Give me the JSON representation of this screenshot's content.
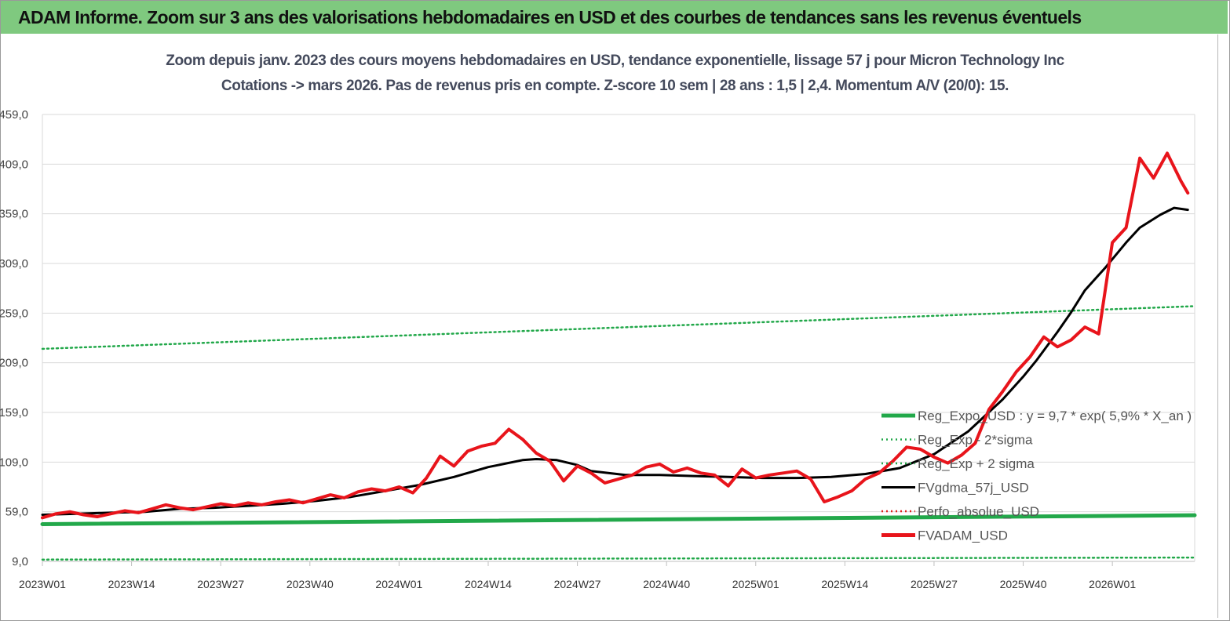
{
  "banner_title": "ADAM Informe. Zoom sur 3 ans des valorisations hebdomadaires en USD et des courbes de tendances sans les revenus éventuels",
  "chart_data": {
    "type": "line",
    "title_line1": "Zoom depuis janv. 2023 des cours moyens hebdomadaires en USD, tendance exponentielle, lissage 57 j pour Micron Technology Inc",
    "title_line2": "Cotations -> mars 2026. Pas de revenus pris en compte. Z-score 10 sem  | 28 ans : 1,5 | 2,4. Momentum A/V (20/0): 15.",
    "ylim": [
      9,
      459
    ],
    "yticks": [
      "9,0",
      "59,0",
      "109,0",
      "159,0",
      "209,0",
      "259,0",
      "309,0",
      "359,0",
      "409,0",
      "459,0"
    ],
    "ytick_values": [
      9,
      59,
      109,
      159,
      209,
      259,
      309,
      359,
      409,
      459
    ],
    "xticks": [
      "2023W01",
      "2023W14",
      "2023W27",
      "2023W40",
      "2024W01",
      "2024W14",
      "2024W27",
      "2024W40",
      "2025W01",
      "2025W14",
      "2025W27",
      "2025W40",
      "2026W01"
    ],
    "x_range_weeks": [
      0,
      168
    ],
    "grid": true,
    "legend_position": "bottom-right inside plot",
    "series": [
      {
        "name": "Reg_Expo_USD : y = 9,7 * exp( 5,9% *  X_an )",
        "color": "#22a84a",
        "style": "thick",
        "x": [
          0,
          168
        ],
        "values": [
          46.5,
          55.5
        ]
      },
      {
        "name": "Reg_Exp - 2*sigma",
        "color": "#22a84a",
        "style": "dotted",
        "x": [
          0,
          168
        ],
        "values": [
          10.8,
          12.9
        ]
      },
      {
        "name": "Reg_Exp + 2 sigma",
        "color": "#22a84a",
        "style": "dotted",
        "x": [
          0,
          168
        ],
        "values": [
          223,
          266
        ]
      },
      {
        "name": "FVgdma_57j_USD",
        "color": "#000000",
        "style": "solid",
        "x": [
          0,
          5,
          10,
          15,
          20,
          25,
          30,
          35,
          40,
          45,
          50,
          55,
          60,
          65,
          70,
          72,
          75,
          78,
          80,
          85,
          90,
          95,
          100,
          105,
          110,
          115,
          120,
          125,
          130,
          135,
          140,
          143,
          145,
          148,
          150,
          152,
          155,
          158,
          160,
          163,
          165,
          167
        ],
        "values": [
          56,
          57,
          58,
          59,
          62,
          63,
          65,
          67,
          70,
          74,
          80,
          86,
          94,
          104,
          111,
          112,
          111,
          106,
          100,
          96,
          96,
          95,
          94,
          93,
          93,
          94,
          97,
          103,
          117,
          140,
          172,
          195,
          212,
          240,
          260,
          282,
          305,
          330,
          345,
          358,
          365,
          363
        ]
      },
      {
        "name": "Perfo_absolue_USD",
        "color": "#e0201c",
        "style": "dotted",
        "x": [],
        "values": []
      },
      {
        "name": "FVADAM_USD",
        "color": "#e8141b",
        "style": "thick",
        "x": [
          0,
          2,
          4,
          6,
          8,
          10,
          12,
          14,
          16,
          18,
          20,
          22,
          24,
          26,
          28,
          30,
          32,
          34,
          36,
          38,
          40,
          42,
          44,
          46,
          48,
          50,
          52,
          54,
          56,
          58,
          60,
          62,
          64,
          66,
          68,
          70,
          72,
          74,
          76,
          78,
          80,
          82,
          84,
          86,
          88,
          90,
          92,
          94,
          96,
          98,
          100,
          102,
          104,
          106,
          108,
          110,
          112,
          114,
          116,
          118,
          120,
          122,
          124,
          126,
          128,
          130,
          132,
          134,
          136,
          138,
          140,
          142,
          144,
          146,
          148,
          150,
          152,
          154,
          156,
          158,
          160,
          162,
          164,
          166,
          167
        ],
        "values": [
          53,
          57,
          59,
          56,
          54,
          57,
          60,
          58,
          62,
          66,
          63,
          61,
          64,
          67,
          65,
          68,
          66,
          69,
          71,
          68,
          72,
          76,
          73,
          79,
          82,
          80,
          84,
          78,
          93,
          115,
          105,
          120,
          125,
          128,
          142,
          132,
          118,
          110,
          90,
          105,
          98,
          88,
          92,
          96,
          104,
          107,
          99,
          103,
          98,
          96,
          85,
          102,
          93,
          96,
          98,
          100,
          92,
          69,
          74,
          80,
          92,
          98,
          110,
          124,
          122,
          114,
          108,
          116,
          128,
          162,
          180,
          200,
          215,
          235,
          225,
          232,
          245,
          238,
          330,
          345,
          415,
          395,
          420,
          392,
          380
        ]
      }
    ]
  }
}
